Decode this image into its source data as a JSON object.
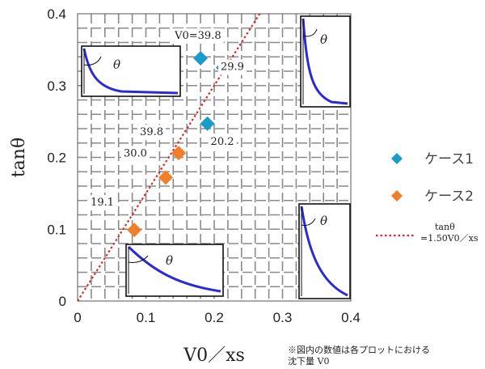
{
  "chart_data": {
    "type": "scatter",
    "xlabel": "V0／xs",
    "ylabel": "tanθ",
    "xlim": [
      0,
      0.4
    ],
    "ylim": [
      0,
      0.4
    ],
    "xticks": [
      "0",
      "0.1",
      "0.2",
      "0.3",
      "0.4"
    ],
    "yticks": [
      "0",
      "0.1",
      "0.2",
      "0.3",
      "0.4"
    ],
    "grid": true,
    "legend_position": "right",
    "series": [
      {
        "name": "ケース1",
        "color": "#1a9bc9",
        "marker": "diamond",
        "points": [
          {
            "x": 0.18,
            "y": 0.338,
            "label": "V0=39.8"
          },
          {
            "x": 0.213,
            "y": 0.325,
            "label": "29.9"
          },
          {
            "x": 0.19,
            "y": 0.247,
            "label": "20.2"
          }
        ]
      },
      {
        "name": "ケース2",
        "color": "#f07f2c",
        "marker": "diamond",
        "points": [
          {
            "x": 0.148,
            "y": 0.206,
            "label": "39.8"
          },
          {
            "x": 0.129,
            "y": 0.172,
            "label": "30.0"
          },
          {
            "x": 0.083,
            "y": 0.099,
            "label": "19.1"
          }
        ]
      }
    ],
    "fit_line": {
      "name": "tanθ =1.50V0／xs",
      "slope": 1.5,
      "color": "#d62a2a",
      "style": "dotted"
    },
    "annotation": "※図内の数値は各プロットにおける 沈下量 V0",
    "note_lines": [
      "※図内の数値は各プロットにおける",
      "沈下量 V0"
    ],
    "fit_label_lines": [
      "tanθ",
      "=1.50V0／xs"
    ],
    "inset_theta": "θ"
  }
}
